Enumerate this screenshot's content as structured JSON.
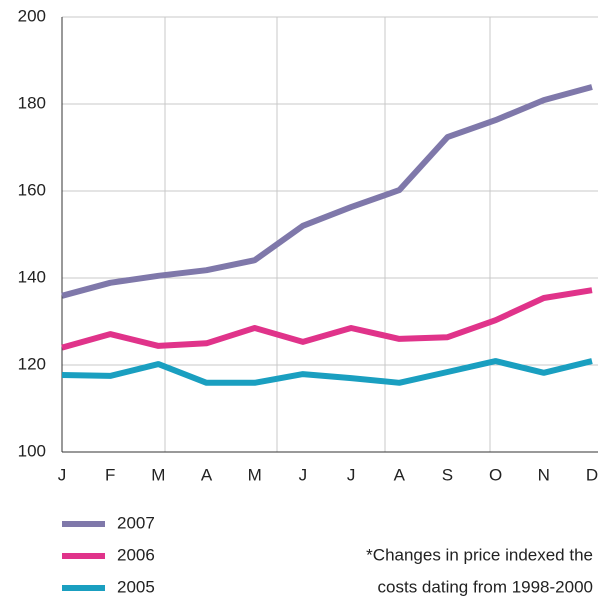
{
  "chart_data": {
    "type": "line",
    "categories": [
      "J",
      "F",
      "M",
      "A",
      "M",
      "J",
      "J",
      "A",
      "S",
      "O",
      "N",
      "D"
    ],
    "series": [
      {
        "name": "2007",
        "color": "#7f78aa",
        "values": [
          135.9,
          138.9,
          140.5,
          141.8,
          144.1,
          152,
          156.3,
          160.2,
          172.4,
          176.3,
          180.9,
          183.9
        ]
      },
      {
        "name": "2006",
        "color": "#e0338a",
        "values": [
          124,
          127.1,
          124.4,
          125,
          128.5,
          125.3,
          128.5,
          126,
          126.4,
          130.3,
          135.4,
          137.2
        ]
      },
      {
        "name": "2005",
        "color": "#1a9fc0",
        "values": [
          117.7,
          117.5,
          120.2,
          115.9,
          115.9,
          117.9,
          117,
          115.9,
          118.4,
          120.9,
          118.2,
          120.9
        ]
      }
    ],
    "ylim": [
      100,
      200
    ],
    "yticks": [
      100,
      120,
      140,
      160,
      180,
      200
    ],
    "grid": true,
    "annotation": [
      "*Changes in price indexed the",
      "costs dating from 1998-2000"
    ]
  }
}
